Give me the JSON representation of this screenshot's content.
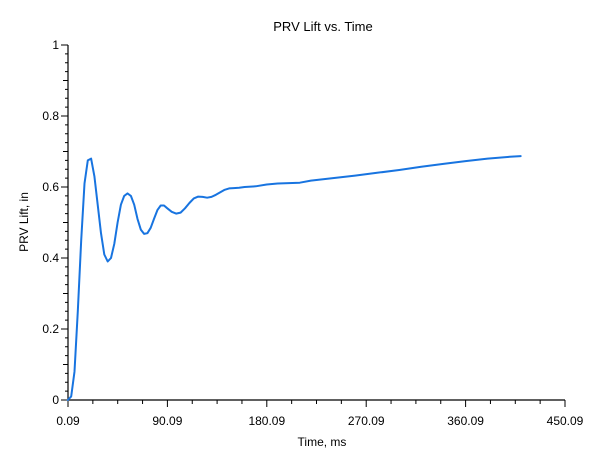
{
  "chart_data": {
    "type": "line",
    "title": "PRV Lift vs. Time",
    "xlabel": "Time, ms",
    "ylabel": "PRV Lift, in",
    "xlim": [
      0.09,
      450.09
    ],
    "ylim": [
      0,
      1
    ],
    "x_ticks": [
      "0.09",
      "90.09",
      "180.09",
      "270.09",
      "360.09",
      "450.09"
    ],
    "x_tick_values": [
      0.09,
      90.09,
      180.09,
      270.09,
      360.09,
      450.09
    ],
    "y_ticks": [
      "0",
      "0.2",
      "0.4",
      "0.6",
      "0.8",
      "1"
    ],
    "y_tick_values": [
      0,
      0.2,
      0.4,
      0.6,
      0.8,
      1
    ],
    "grid": false,
    "legend": "none",
    "series": [
      {
        "color": "#1874e0",
        "x": [
          0,
          3,
          6,
          9,
          12,
          15,
          18,
          21,
          24,
          27,
          30,
          33,
          36,
          39,
          42,
          45,
          48,
          51,
          54,
          57,
          60,
          63,
          66,
          69,
          72,
          75,
          78,
          81,
          84,
          87,
          90,
          94,
          98,
          102,
          106,
          110,
          114,
          118,
          122,
          126,
          130,
          134,
          138,
          142,
          146,
          150,
          155,
          160,
          170,
          180,
          190,
          200,
          210,
          220,
          240,
          260,
          280,
          300,
          320,
          340,
          360,
          380,
          400,
          410
        ],
        "y": [
          0,
          0.01,
          0.08,
          0.25,
          0.45,
          0.61,
          0.675,
          0.68,
          0.63,
          0.55,
          0.47,
          0.41,
          0.39,
          0.4,
          0.44,
          0.5,
          0.55,
          0.575,
          0.582,
          0.575,
          0.55,
          0.51,
          0.48,
          0.468,
          0.47,
          0.485,
          0.51,
          0.535,
          0.548,
          0.548,
          0.54,
          0.53,
          0.525,
          0.528,
          0.54,
          0.555,
          0.568,
          0.573,
          0.572,
          0.57,
          0.572,
          0.578,
          0.585,
          0.592,
          0.596,
          0.597,
          0.598,
          0.6,
          0.602,
          0.607,
          0.61,
          0.611,
          0.612,
          0.618,
          0.625,
          0.632,
          0.64,
          0.648,
          0.657,
          0.665,
          0.673,
          0.68,
          0.685,
          0.687
        ]
      }
    ]
  }
}
